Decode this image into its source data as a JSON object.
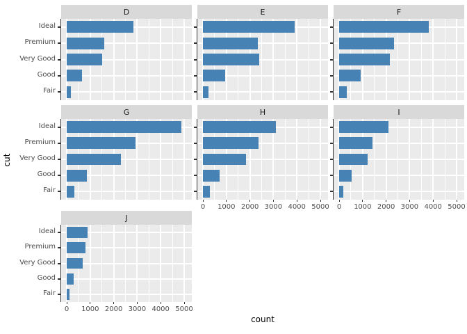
{
  "chart_data": {
    "type": "bar",
    "orientation": "horizontal",
    "title": "",
    "xlabel": "count",
    "ylabel": "cut",
    "facet_variable_values": [
      "D",
      "E",
      "F",
      "G",
      "H",
      "I",
      "J"
    ],
    "categories": [
      "Ideal",
      "Premium",
      "Very Good",
      "Good",
      "Fair"
    ],
    "facets": [
      {
        "label": "D",
        "values": [
          2834,
          1603,
          1513,
          662,
          163
        ]
      },
      {
        "label": "E",
        "values": [
          3903,
          2337,
          2400,
          933,
          224
        ]
      },
      {
        "label": "F",
        "values": [
          3826,
          2331,
          2164,
          909,
          312
        ]
      },
      {
        "label": "G",
        "values": [
          4884,
          2924,
          2299,
          871,
          314
        ]
      },
      {
        "label": "H",
        "values": [
          3115,
          2360,
          1824,
          702,
          303
        ]
      },
      {
        "label": "I",
        "values": [
          2093,
          1428,
          1204,
          522,
          175
        ]
      },
      {
        "label": "J",
        "values": [
          896,
          808,
          678,
          307,
          119
        ]
      }
    ],
    "x_major_ticks": [
      0,
      1000,
      2000,
      3000,
      4000,
      5000
    ],
    "x_minor_ticks": [
      500,
      1500,
      2500,
      3500,
      4500
    ],
    "xlim": [
      -236,
      5330
    ],
    "grid": true,
    "legend": "none",
    "colors": {
      "bar": "#4682B4",
      "panel_bg": "#EBEBEB",
      "strip_bg": "#D9D9D9",
      "grid": "#FFFFFF",
      "axis": "#333333",
      "tick_label": "#4d4d4d",
      "strip_text": "#1a1a1a"
    }
  }
}
